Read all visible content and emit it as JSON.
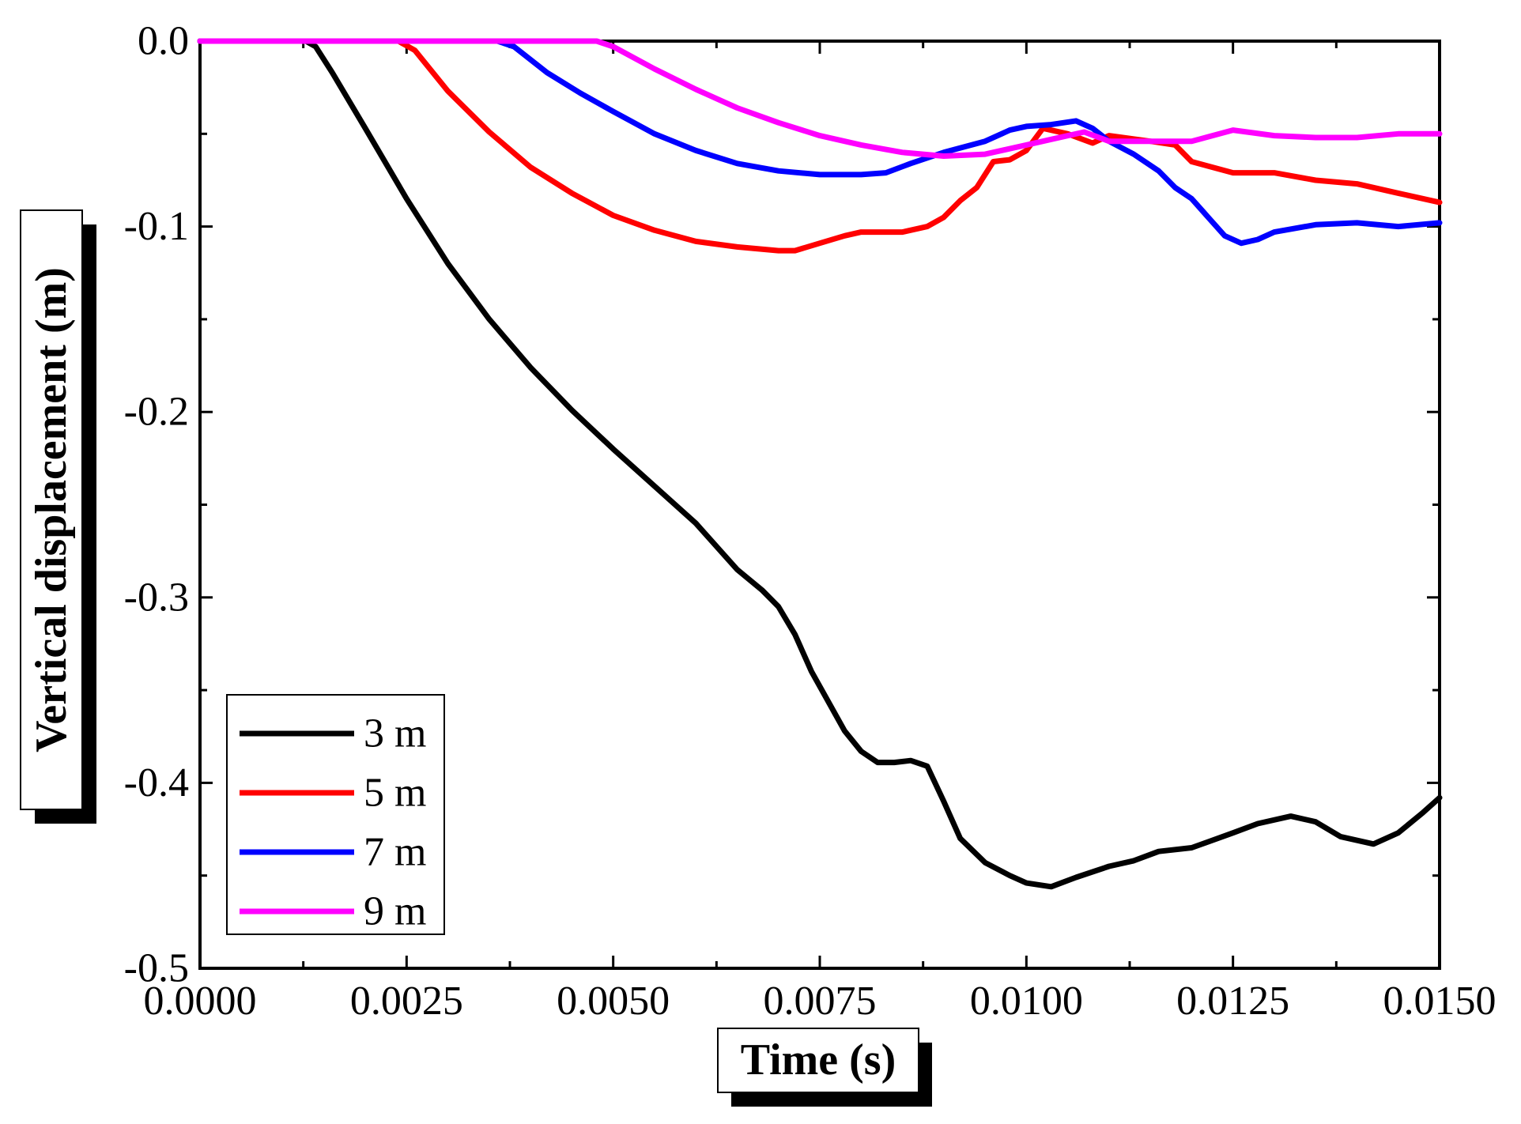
{
  "chart_data": {
    "type": "line",
    "title": "",
    "xlabel": "Time (s)",
    "ylabel": "Vertical displacement (m)",
    "xlim": [
      0,
      0.015
    ],
    "ylim": [
      -0.5,
      0
    ],
    "x_ticks": [
      0,
      0.0025,
      0.005,
      0.0075,
      0.01,
      0.0125,
      0.015
    ],
    "x_tick_labels": [
      "0.0000",
      "0.0025",
      "0.0050",
      "0.0075",
      "0.0100",
      "0.0125",
      "0.0150"
    ],
    "y_ticks": [
      0,
      -0.1,
      -0.2,
      -0.3,
      -0.4,
      -0.5
    ],
    "y_tick_labels": [
      "0.0",
      "-0.1",
      "-0.2",
      "-0.3",
      "-0.4",
      "-0.5"
    ],
    "grid": false,
    "legend_position": "bottom-left",
    "series": [
      {
        "name": "3 m",
        "color": "#000000",
        "points": [
          [
            0,
            0
          ],
          [
            0.00128,
            0
          ],
          [
            0.0014,
            -0.003
          ],
          [
            0.0016,
            -0.017
          ],
          [
            0.002,
            -0.047
          ],
          [
            0.0025,
            -0.085
          ],
          [
            0.003,
            -0.12
          ],
          [
            0.0035,
            -0.15
          ],
          [
            0.004,
            -0.176
          ],
          [
            0.0045,
            -0.199
          ],
          [
            0.005,
            -0.22
          ],
          [
            0.0055,
            -0.24
          ],
          [
            0.006,
            -0.26
          ],
          [
            0.0063,
            -0.275
          ],
          [
            0.0065,
            -0.285
          ],
          [
            0.0068,
            -0.296
          ],
          [
            0.007,
            -0.305
          ],
          [
            0.0072,
            -0.32
          ],
          [
            0.0074,
            -0.34
          ],
          [
            0.0076,
            -0.356
          ],
          [
            0.0078,
            -0.372
          ],
          [
            0.008,
            -0.383
          ],
          [
            0.0082,
            -0.389
          ],
          [
            0.0084,
            -0.389
          ],
          [
            0.0086,
            -0.388
          ],
          [
            0.0088,
            -0.391
          ],
          [
            0.009,
            -0.41
          ],
          [
            0.0092,
            -0.43
          ],
          [
            0.0095,
            -0.443
          ],
          [
            0.0098,
            -0.45
          ],
          [
            0.01,
            -0.454
          ],
          [
            0.0103,
            -0.456
          ],
          [
            0.0106,
            -0.451
          ],
          [
            0.011,
            -0.445
          ],
          [
            0.0113,
            -0.442
          ],
          [
            0.0116,
            -0.437
          ],
          [
            0.012,
            -0.435
          ],
          [
            0.0125,
            -0.427
          ],
          [
            0.0128,
            -0.422
          ],
          [
            0.0132,
            -0.418
          ],
          [
            0.0135,
            -0.421
          ],
          [
            0.0138,
            -0.429
          ],
          [
            0.0142,
            -0.433
          ],
          [
            0.0145,
            -0.427
          ],
          [
            0.0148,
            -0.416
          ],
          [
            0.015,
            -0.408
          ]
        ]
      },
      {
        "name": "5 m",
        "color": "#ff0000",
        "points": [
          [
            0,
            0
          ],
          [
            0.0024,
            0
          ],
          [
            0.0026,
            -0.005
          ],
          [
            0.003,
            -0.027
          ],
          [
            0.0035,
            -0.049
          ],
          [
            0.004,
            -0.068
          ],
          [
            0.0045,
            -0.082
          ],
          [
            0.005,
            -0.094
          ],
          [
            0.0055,
            -0.102
          ],
          [
            0.006,
            -0.108
          ],
          [
            0.0065,
            -0.111
          ],
          [
            0.007,
            -0.113
          ],
          [
            0.0072,
            -0.113
          ],
          [
            0.0075,
            -0.109
          ],
          [
            0.0078,
            -0.105
          ],
          [
            0.008,
            -0.103
          ],
          [
            0.0085,
            -0.103
          ],
          [
            0.0088,
            -0.1
          ],
          [
            0.009,
            -0.095
          ],
          [
            0.0092,
            -0.086
          ],
          [
            0.0094,
            -0.079
          ],
          [
            0.0096,
            -0.065
          ],
          [
            0.0098,
            -0.064
          ],
          [
            0.01,
            -0.059
          ],
          [
            0.0102,
            -0.047
          ],
          [
            0.0105,
            -0.05
          ],
          [
            0.0108,
            -0.055
          ],
          [
            0.011,
            -0.051
          ],
          [
            0.0115,
            -0.054
          ],
          [
            0.0118,
            -0.056
          ],
          [
            0.012,
            -0.065
          ],
          [
            0.0125,
            -0.071
          ],
          [
            0.013,
            -0.071
          ],
          [
            0.0135,
            -0.075
          ],
          [
            0.014,
            -0.077
          ],
          [
            0.0145,
            -0.082
          ],
          [
            0.015,
            -0.087
          ]
        ]
      },
      {
        "name": "7 m",
        "color": "#0000ff",
        "points": [
          [
            0,
            0
          ],
          [
            0.0036,
            0
          ],
          [
            0.0038,
            -0.003
          ],
          [
            0.0042,
            -0.017
          ],
          [
            0.0046,
            -0.028
          ],
          [
            0.005,
            -0.038
          ],
          [
            0.0055,
            -0.05
          ],
          [
            0.006,
            -0.059
          ],
          [
            0.0065,
            -0.066
          ],
          [
            0.007,
            -0.07
          ],
          [
            0.0075,
            -0.072
          ],
          [
            0.008,
            -0.072
          ],
          [
            0.0083,
            -0.071
          ],
          [
            0.0086,
            -0.066
          ],
          [
            0.009,
            -0.06
          ],
          [
            0.0095,
            -0.054
          ],
          [
            0.0098,
            -0.048
          ],
          [
            0.01,
            -0.046
          ],
          [
            0.0103,
            -0.045
          ],
          [
            0.0106,
            -0.043
          ],
          [
            0.0108,
            -0.047
          ],
          [
            0.011,
            -0.054
          ],
          [
            0.0113,
            -0.061
          ],
          [
            0.0116,
            -0.07
          ],
          [
            0.0118,
            -0.079
          ],
          [
            0.012,
            -0.085
          ],
          [
            0.0122,
            -0.095
          ],
          [
            0.0124,
            -0.105
          ],
          [
            0.0126,
            -0.109
          ],
          [
            0.0128,
            -0.107
          ],
          [
            0.013,
            -0.103
          ],
          [
            0.0135,
            -0.099
          ],
          [
            0.014,
            -0.098
          ],
          [
            0.0145,
            -0.1
          ],
          [
            0.015,
            -0.098
          ]
        ]
      },
      {
        "name": "9 m",
        "color": "#ff00ff",
        "points": [
          [
            0,
            0
          ],
          [
            0.0048,
            0
          ],
          [
            0.005,
            -0.003
          ],
          [
            0.0055,
            -0.015
          ],
          [
            0.006,
            -0.026
          ],
          [
            0.0065,
            -0.036
          ],
          [
            0.007,
            -0.044
          ],
          [
            0.0075,
            -0.051
          ],
          [
            0.008,
            -0.056
          ],
          [
            0.0085,
            -0.06
          ],
          [
            0.009,
            -0.062
          ],
          [
            0.0095,
            -0.061
          ],
          [
            0.01,
            -0.056
          ],
          [
            0.0103,
            -0.053
          ],
          [
            0.0107,
            -0.049
          ],
          [
            0.011,
            -0.054
          ],
          [
            0.0115,
            -0.054
          ],
          [
            0.012,
            -0.054
          ],
          [
            0.0125,
            -0.048
          ],
          [
            0.013,
            -0.051
          ],
          [
            0.0135,
            -0.052
          ],
          [
            0.014,
            -0.052
          ],
          [
            0.0145,
            -0.05
          ],
          [
            0.015,
            -0.05
          ]
        ]
      }
    ]
  }
}
